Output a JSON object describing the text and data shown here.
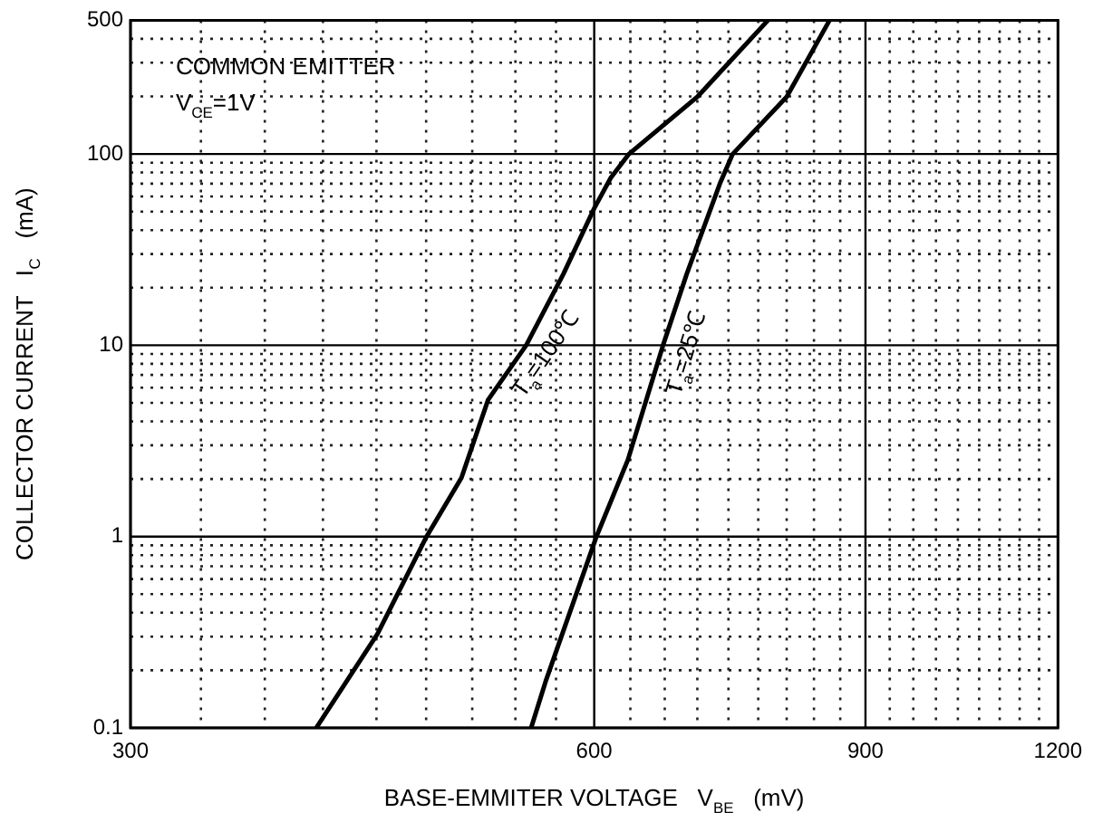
{
  "chart_data": {
    "type": "line",
    "xlabel": "BASE-EMMITER VOLTAGE   V$_{BE}$   (mV)",
    "ylabel": "COLLECTOR CURRENT   I$_{C}$   (mA)",
    "log": "xy",
    "xlim": [
      300,
      1200
    ],
    "ylim": [
      0.1,
      500
    ],
    "xticks": [
      300,
      {
        "value": 333.3,
        "label": null
      },
      {
        "value": 366.7,
        "label": null
      },
      {
        "value": 400,
        "label": null
      },
      {
        "value": 433.3,
        "label": null
      },
      {
        "value": 466.7,
        "label": null
      },
      {
        "value": 500,
        "label": null
      },
      {
        "value": 533.3,
        "label": null
      },
      {
        "value": 566.7,
        "label": null
      },
      600,
      {
        "value": 633.3,
        "label": null
      },
      {
        "value": 666.7,
        "label": null
      },
      {
        "value": 700,
        "label": null
      },
      {
        "value": 733.3,
        "label": null
      },
      {
        "value": 766.7,
        "label": null
      },
      {
        "value": 800,
        "label": null
      },
      {
        "value": 833.3,
        "label": null
      },
      {
        "value": 866.7,
        "label": null
      },
      900,
      {
        "value": 933.3,
        "label": null
      },
      {
        "value": 966.7,
        "label": null
      },
      {
        "value": 1000,
        "label": null
      },
      {
        "value": 1033.3,
        "label": null
      },
      {
        "value": 1066.7,
        "label": null
      },
      {
        "value": 1100,
        "label": null
      },
      {
        "value": 1133.3,
        "label": null
      },
      {
        "value": 1166.7,
        "label": null
      },
      1200
    ],
    "yticks": [
      0.1,
      {
        "value": 0.2,
        "label": null
      },
      {
        "value": 0.3,
        "label": null
      },
      {
        "value": 0.4,
        "label": null
      },
      {
        "value": 0.5,
        "label": null
      },
      {
        "value": 0.6,
        "label": null
      },
      {
        "value": 0.7,
        "label": null
      },
      {
        "value": 0.8,
        "label": null
      },
      {
        "value": 0.9,
        "label": null
      },
      1,
      {
        "value": 2,
        "label": null
      },
      {
        "value": 3,
        "label": null
      },
      {
        "value": 4,
        "label": null
      },
      {
        "value": 5,
        "label": null
      },
      {
        "value": 6,
        "label": null
      },
      {
        "value": 7,
        "label": null
      },
      {
        "value": 8,
        "label": null
      },
      {
        "value": 9,
        "label": null
      },
      10,
      {
        "value": 20,
        "label": null
      },
      {
        "value": 30,
        "label": null
      },
      {
        "value": 40,
        "label": null
      },
      {
        "value": 50,
        "label": null
      },
      {
        "value": 60,
        "label": null
      },
      {
        "value": 70,
        "label": null
      },
      {
        "value": 80,
        "label": null
      },
      {
        "value": 90,
        "label": null
      },
      100,
      {
        "value": 200,
        "label": null
      },
      {
        "value": 300,
        "label": null
      },
      {
        "value": 400,
        "label": null
      },
      500
    ],
    "grid": true,
    "legend": false,
    "marker": "none",
    "line_style": "solid",
    "series": [
      {
        "name": "T$_{a}$=100℃",
        "color": "#000000",
        "x": [
          396,
          434,
          467,
          492,
          512,
          542,
          573,
          600,
          615,
          632,
          700,
          778
        ],
        "values": [
          0.1,
          0.31,
          1,
          2.03,
          5.19,
          10,
          23.6,
          52,
          75,
          100,
          199,
          500
        ]
      },
      {
        "name": "T$_{a}$=25℃",
        "color": "#000000",
        "x": [
          546,
          558,
          602,
          631,
          665,
          689,
          724,
          738,
          800,
          853
        ],
        "values": [
          0.1,
          0.175,
          1,
          2.52,
          10,
          23.6,
          70,
          100,
          199,
          500
        ]
      }
    ],
    "annotations": [
      "COMMON EMITTER",
      "V$_{CE}$=1V"
    ]
  }
}
